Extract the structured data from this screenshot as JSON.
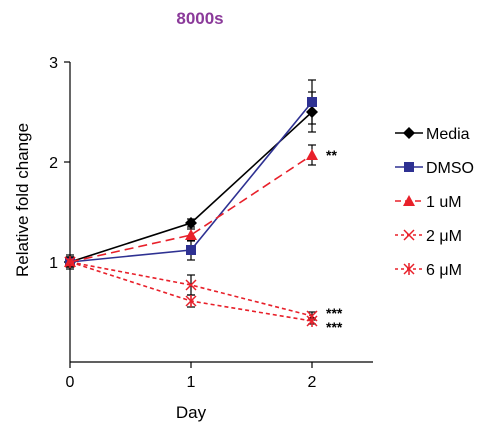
{
  "chart_data": {
    "type": "line",
    "title": "8000s",
    "xlabel": "Day",
    "ylabel": "Relative fold change",
    "x": [
      0,
      1,
      2
    ],
    "xlim": [
      0,
      2.6
    ],
    "ylim": [
      0,
      3
    ],
    "x_ticks": [
      "0",
      "1",
      "2"
    ],
    "y_ticks": [
      "1",
      "2",
      "3"
    ],
    "grid": false,
    "legend_position": "right",
    "series": [
      {
        "name": "Media",
        "values": [
          1.0,
          1.39,
          2.5
        ],
        "errors": [
          0.07,
          0.04,
          0.2
        ],
        "color": "#000000",
        "marker": "diamond",
        "dash": "solid"
      },
      {
        "name": "DMSO",
        "values": [
          1.0,
          1.12,
          2.6
        ],
        "errors": [
          0.05,
          0.1,
          0.22
        ],
        "color": "#2E3192",
        "marker": "square",
        "dash": "solid"
      },
      {
        "name": "1 uM",
        "values": [
          1.0,
          1.27,
          2.07
        ],
        "errors": [
          0.05,
          0.06,
          0.1
        ],
        "color": "#E8202A",
        "marker": "triangle",
        "dash": "long-dash"
      },
      {
        "name": "2 μM",
        "values": [
          1.0,
          0.77,
          0.46
        ],
        "errors": [
          0.05,
          0.1,
          0.04
        ],
        "color": "#E8202A",
        "marker": "x",
        "dash": "short-dash"
      },
      {
        "name": "6 μM",
        "values": [
          1.0,
          0.61,
          0.41
        ],
        "errors": [
          0.05,
          0.06,
          0.03
        ],
        "color": "#E8202A",
        "marker": "asterisk",
        "dash": "short-dash"
      }
    ],
    "annotations": [
      {
        "text": "**",
        "x": 2,
        "y": 2.07
      },
      {
        "text": "***",
        "x": 2,
        "y": 0.49
      },
      {
        "text": "***",
        "x": 2,
        "y": 0.35
      }
    ]
  }
}
